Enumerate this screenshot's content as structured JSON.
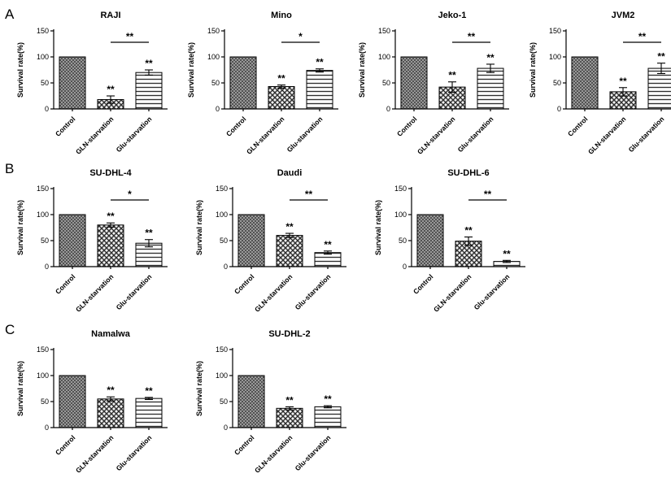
{
  "figure": {
    "panels": [
      {
        "label": "A"
      },
      {
        "label": "B"
      },
      {
        "label": "C"
      }
    ],
    "colors": {
      "axis": "#000000",
      "bar_outline": "#000000",
      "text": "#000000"
    },
    "bar_patterns": [
      "dense-crosshatch-gray",
      "checker-crosshatch",
      "horizontal-lines"
    ]
  },
  "chart_data": [
    {
      "type": "bar",
      "panel": "A",
      "title": "RAJI",
      "ylabel": "Survival rate(%)",
      "ylim": [
        0,
        150
      ],
      "yticks": [
        0,
        50,
        100,
        150
      ],
      "categories": [
        "Control",
        "GLN-starvation",
        "Glu-starvation"
      ],
      "values": [
        100,
        18,
        70
      ],
      "errors": [
        0,
        7,
        5
      ],
      "bar_sig": [
        "",
        "**",
        "**"
      ],
      "comparison": {
        "from": 1,
        "to": 2,
        "label": "**"
      },
      "grid": false,
      "legend": "none"
    },
    {
      "type": "bar",
      "panel": "A",
      "title": "Mino",
      "ylabel": "Survival rate(%)",
      "ylim": [
        0,
        150
      ],
      "yticks": [
        0,
        50,
        100,
        150
      ],
      "categories": [
        "Control",
        "GLN-starvation",
        "Glu-starvation"
      ],
      "values": [
        100,
        43,
        74
      ],
      "errors": [
        0,
        3,
        3
      ],
      "bar_sig": [
        "",
        "**",
        "**"
      ],
      "comparison": {
        "from": 1,
        "to": 2,
        "label": "*"
      },
      "grid": false,
      "legend": "none"
    },
    {
      "type": "bar",
      "panel": "A",
      "title": "Jeko-1",
      "ylabel": "Survival rate(%)",
      "ylim": [
        0,
        150
      ],
      "yticks": [
        0,
        50,
        100,
        150
      ],
      "categories": [
        "Control",
        "GLN-starvation",
        "Glu-starvation"
      ],
      "values": [
        100,
        42,
        78
      ],
      "errors": [
        0,
        10,
        8
      ],
      "bar_sig": [
        "",
        "**",
        "**"
      ],
      "comparison": {
        "from": 1,
        "to": 2,
        "label": "**"
      },
      "grid": false,
      "legend": "none"
    },
    {
      "type": "bar",
      "panel": "A",
      "title": "JVM2",
      "ylabel": "Survival rate(%)",
      "ylim": [
        0,
        150
      ],
      "yticks": [
        0,
        50,
        100,
        150
      ],
      "categories": [
        "Control",
        "GLN-starvation",
        "Glu-starvation"
      ],
      "values": [
        100,
        33,
        78
      ],
      "errors": [
        0,
        8,
        10
      ],
      "bar_sig": [
        "",
        "**",
        "**"
      ],
      "comparison": {
        "from": 1,
        "to": 2,
        "label": "**"
      },
      "grid": false,
      "legend": "none"
    },
    {
      "type": "bar",
      "panel": "B",
      "title": "SU-DHL-4",
      "ylabel": "Survival rate(%)",
      "ylim": [
        0,
        150
      ],
      "yticks": [
        0,
        50,
        100,
        150
      ],
      "categories": [
        "Control",
        "GLN-starvation",
        "Glu-starvation"
      ],
      "values": [
        100,
        80,
        45
      ],
      "errors": [
        0,
        4,
        7
      ],
      "bar_sig": [
        "",
        "**",
        "**"
      ],
      "comparison": {
        "from": 1,
        "to": 2,
        "label": "*"
      },
      "grid": false,
      "legend": "none"
    },
    {
      "type": "bar",
      "panel": "B",
      "title": "Daudi",
      "ylabel": "Survival rate(%)",
      "ylim": [
        0,
        150
      ],
      "yticks": [
        0,
        50,
        100,
        150
      ],
      "categories": [
        "Control",
        "GLN-starvation",
        "Glu-starvation"
      ],
      "values": [
        100,
        60,
        27
      ],
      "errors": [
        0,
        4,
        3
      ],
      "bar_sig": [
        "",
        "**",
        "**"
      ],
      "comparison": {
        "from": 1,
        "to": 2,
        "label": "**"
      },
      "grid": false,
      "legend": "none"
    },
    {
      "type": "bar",
      "panel": "B",
      "title": "SU-DHL-6",
      "ylabel": "Survival rate(%)",
      "ylim": [
        0,
        150
      ],
      "yticks": [
        0,
        50,
        100,
        150
      ],
      "categories": [
        "Control",
        "GLN-starvation",
        "Glu-starvation"
      ],
      "values": [
        100,
        49,
        10
      ],
      "errors": [
        0,
        8,
        2
      ],
      "bar_sig": [
        "",
        "**",
        "**"
      ],
      "comparison": {
        "from": 1,
        "to": 2,
        "label": "**"
      },
      "grid": false,
      "legend": "none"
    },
    {
      "type": "bar",
      "panel": "C",
      "title": "Namalwa",
      "ylabel": "Survival rate(%)",
      "ylim": [
        0,
        150
      ],
      "yticks": [
        0,
        50,
        100,
        150
      ],
      "categories": [
        "Control",
        "GLN-starvation",
        "Glu-starvation"
      ],
      "values": [
        100,
        55,
        56
      ],
      "errors": [
        0,
        4,
        2
      ],
      "bar_sig": [
        "",
        "**",
        "**"
      ],
      "comparison": null,
      "grid": false,
      "legend": "none"
    },
    {
      "type": "bar",
      "panel": "C",
      "title": "SU-DHL-2",
      "ylabel": "Survival rate(%)",
      "ylim": [
        0,
        150
      ],
      "yticks": [
        0,
        50,
        100,
        150
      ],
      "categories": [
        "Control",
        "GLN-starvation",
        "Glu-starvation"
      ],
      "values": [
        100,
        37,
        40
      ],
      "errors": [
        0,
        3,
        2
      ],
      "bar_sig": [
        "",
        "**",
        "**"
      ],
      "comparison": null,
      "grid": false,
      "legend": "none"
    }
  ]
}
